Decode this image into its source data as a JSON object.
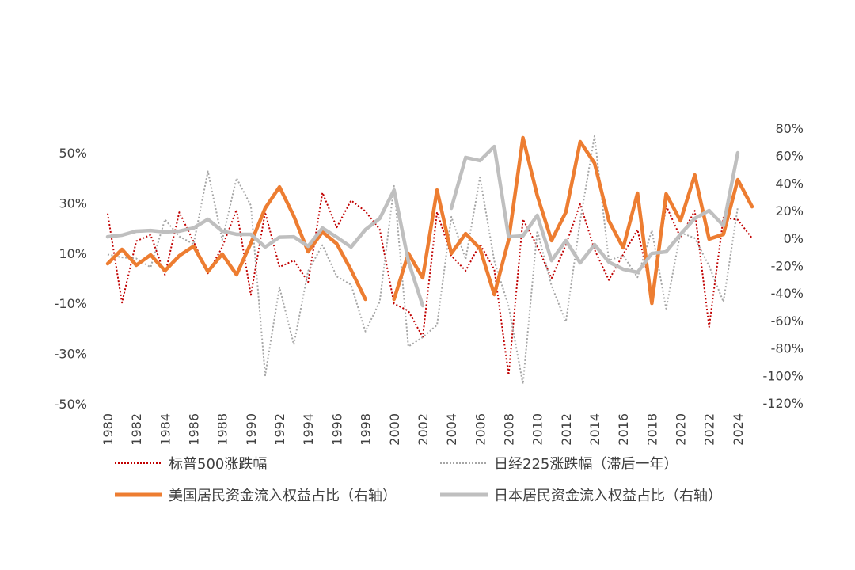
{
  "chart_data": {
    "type": "line",
    "title": "",
    "x": [
      1980,
      1981,
      1982,
      1983,
      1984,
      1985,
      1986,
      1987,
      1988,
      1989,
      1990,
      1991,
      1992,
      1993,
      1994,
      1995,
      1996,
      1997,
      1998,
      1999,
      2000,
      2001,
      2002,
      2003,
      2004,
      2005,
      2006,
      2007,
      2008,
      2009,
      2010,
      2011,
      2012,
      2013,
      2014,
      2015,
      2016,
      2017,
      2018,
      2019,
      2020,
      2021,
      2022,
      2023,
      2024,
      2025
    ],
    "x_tick_labels": [
      "1980",
      "1982",
      "1984",
      "1986",
      "1988",
      "1990",
      "1992",
      "1994",
      "1996",
      "1998",
      "2000",
      "2002",
      "2004",
      "2006",
      "2008",
      "2010",
      "2012",
      "2014",
      "2016",
      "2018",
      "2020",
      "2022",
      "2024"
    ],
    "left_axis": {
      "ylim": [
        -50,
        50
      ],
      "ticks": [
        "50%",
        "30%",
        "10%",
        "-10%",
        "-30%",
        "-50%"
      ],
      "tick_values": [
        50,
        30,
        10,
        -10,
        -30,
        -50
      ]
    },
    "right_axis": {
      "ylim": [
        -120,
        80
      ],
      "ticks": [
        "80%",
        "60%",
        "40%",
        "20%",
        "0%",
        "-20%",
        "-40%",
        "-60%",
        "-80%",
        "-100%",
        "-120%"
      ],
      "tick_values": [
        80,
        60,
        40,
        20,
        0,
        -20,
        -40,
        -60,
        -80,
        -100,
        -120
      ]
    },
    "grid": false,
    "legend_position": "bottom",
    "series": [
      {
        "name": "标普500涨跌幅",
        "axis": "left",
        "style": "dotted",
        "color": "#C00000",
        "values": [
          25.8,
          -9.7,
          14.8,
          17.3,
          1.4,
          26.3,
          14.6,
          2.0,
          12.4,
          27.3,
          -6.6,
          26.3,
          4.5,
          7.1,
          -1.5,
          34.1,
          20.3,
          31.0,
          26.7,
          19.5,
          -10.1,
          -13.0,
          -23.4,
          26.4,
          9.0,
          3.0,
          13.6,
          3.5,
          -38.5,
          23.5,
          12.8,
          0.0,
          13.4,
          29.6,
          11.4,
          -0.7,
          9.5,
          19.4,
          -6.2,
          28.9,
          16.3,
          26.9,
          -19.4,
          24.2,
          23.3,
          16.0
        ]
      },
      {
        "name": "日经225涨跌幅（滞后一年）",
        "axis": "left",
        "style": "dotted",
        "color": "#A6A6A6",
        "values": [
          9.5,
          8.3,
          7.9,
          4.4,
          23.4,
          16.7,
          13.6,
          42.6,
          15.3,
          39.9,
          29.0,
          -38.7,
          -3.6,
          -26.4,
          2.9,
          13.2,
          0.7,
          -2.6,
          -21.2,
          -9.3,
          36.8,
          -27.2,
          -23.5,
          -18.6,
          24.5,
          7.6,
          40.2,
          6.9,
          -11.1,
          -42.1,
          19.0,
          -3.0,
          -17.3,
          22.9,
          56.7,
          7.1,
          9.1,
          0.4,
          19.1,
          -12.1,
          18.2,
          16.0,
          4.9,
          -9.4,
          28.2,
          null
        ]
      },
      {
        "name": "美国居民资金流入权益占比（右轴）",
        "axis": "right",
        "style": "solid",
        "color": "#ED7D31",
        "values": [
          -18.6,
          -8.2,
          -19.7,
          -12.2,
          -23.7,
          -12.8,
          -5.9,
          -24.3,
          -11.6,
          -26.6,
          -3.6,
          21.8,
          37.3,
          16.0,
          -9.9,
          4.5,
          -4.1,
          -23.2,
          -44.5,
          null,
          -44.5,
          -11.1,
          -28.9,
          35.0,
          -11.1,
          3.3,
          -7.6,
          -41.0,
          -1.3,
          73.1,
          31.0,
          -1.8,
          18.9,
          70.2,
          54.6,
          12.6,
          -7.0,
          32.7,
          -47.4,
          32.2,
          12.6,
          46.0,
          -0.7,
          2.8,
          42.5,
          22.9
        ]
      },
      {
        "name": "日本居民资金流入权益占比（右轴）",
        "axis": "right",
        "style": "solid",
        "color": "#BFBFBF",
        "values": [
          1.0,
          2.2,
          5.1,
          5.6,
          4.5,
          5.1,
          7.4,
          13.7,
          5.1,
          2.8,
          2.8,
          -6.5,
          0.7,
          1.0,
          -5.9,
          7.4,
          0.7,
          -6.5,
          6.2,
          14.3,
          35.0,
          -16.8,
          -49.1,
          null,
          21.8,
          58.7,
          56.4,
          66.7,
          1.0,
          1.6,
          16.6,
          -16.3,
          -1.8,
          -18.0,
          -4.7,
          -17.4,
          -22.6,
          -24.9,
          -11.1,
          -9.9,
          2.8,
          14.3,
          20.1,
          9.1,
          62.1,
          null
        ]
      }
    ]
  }
}
